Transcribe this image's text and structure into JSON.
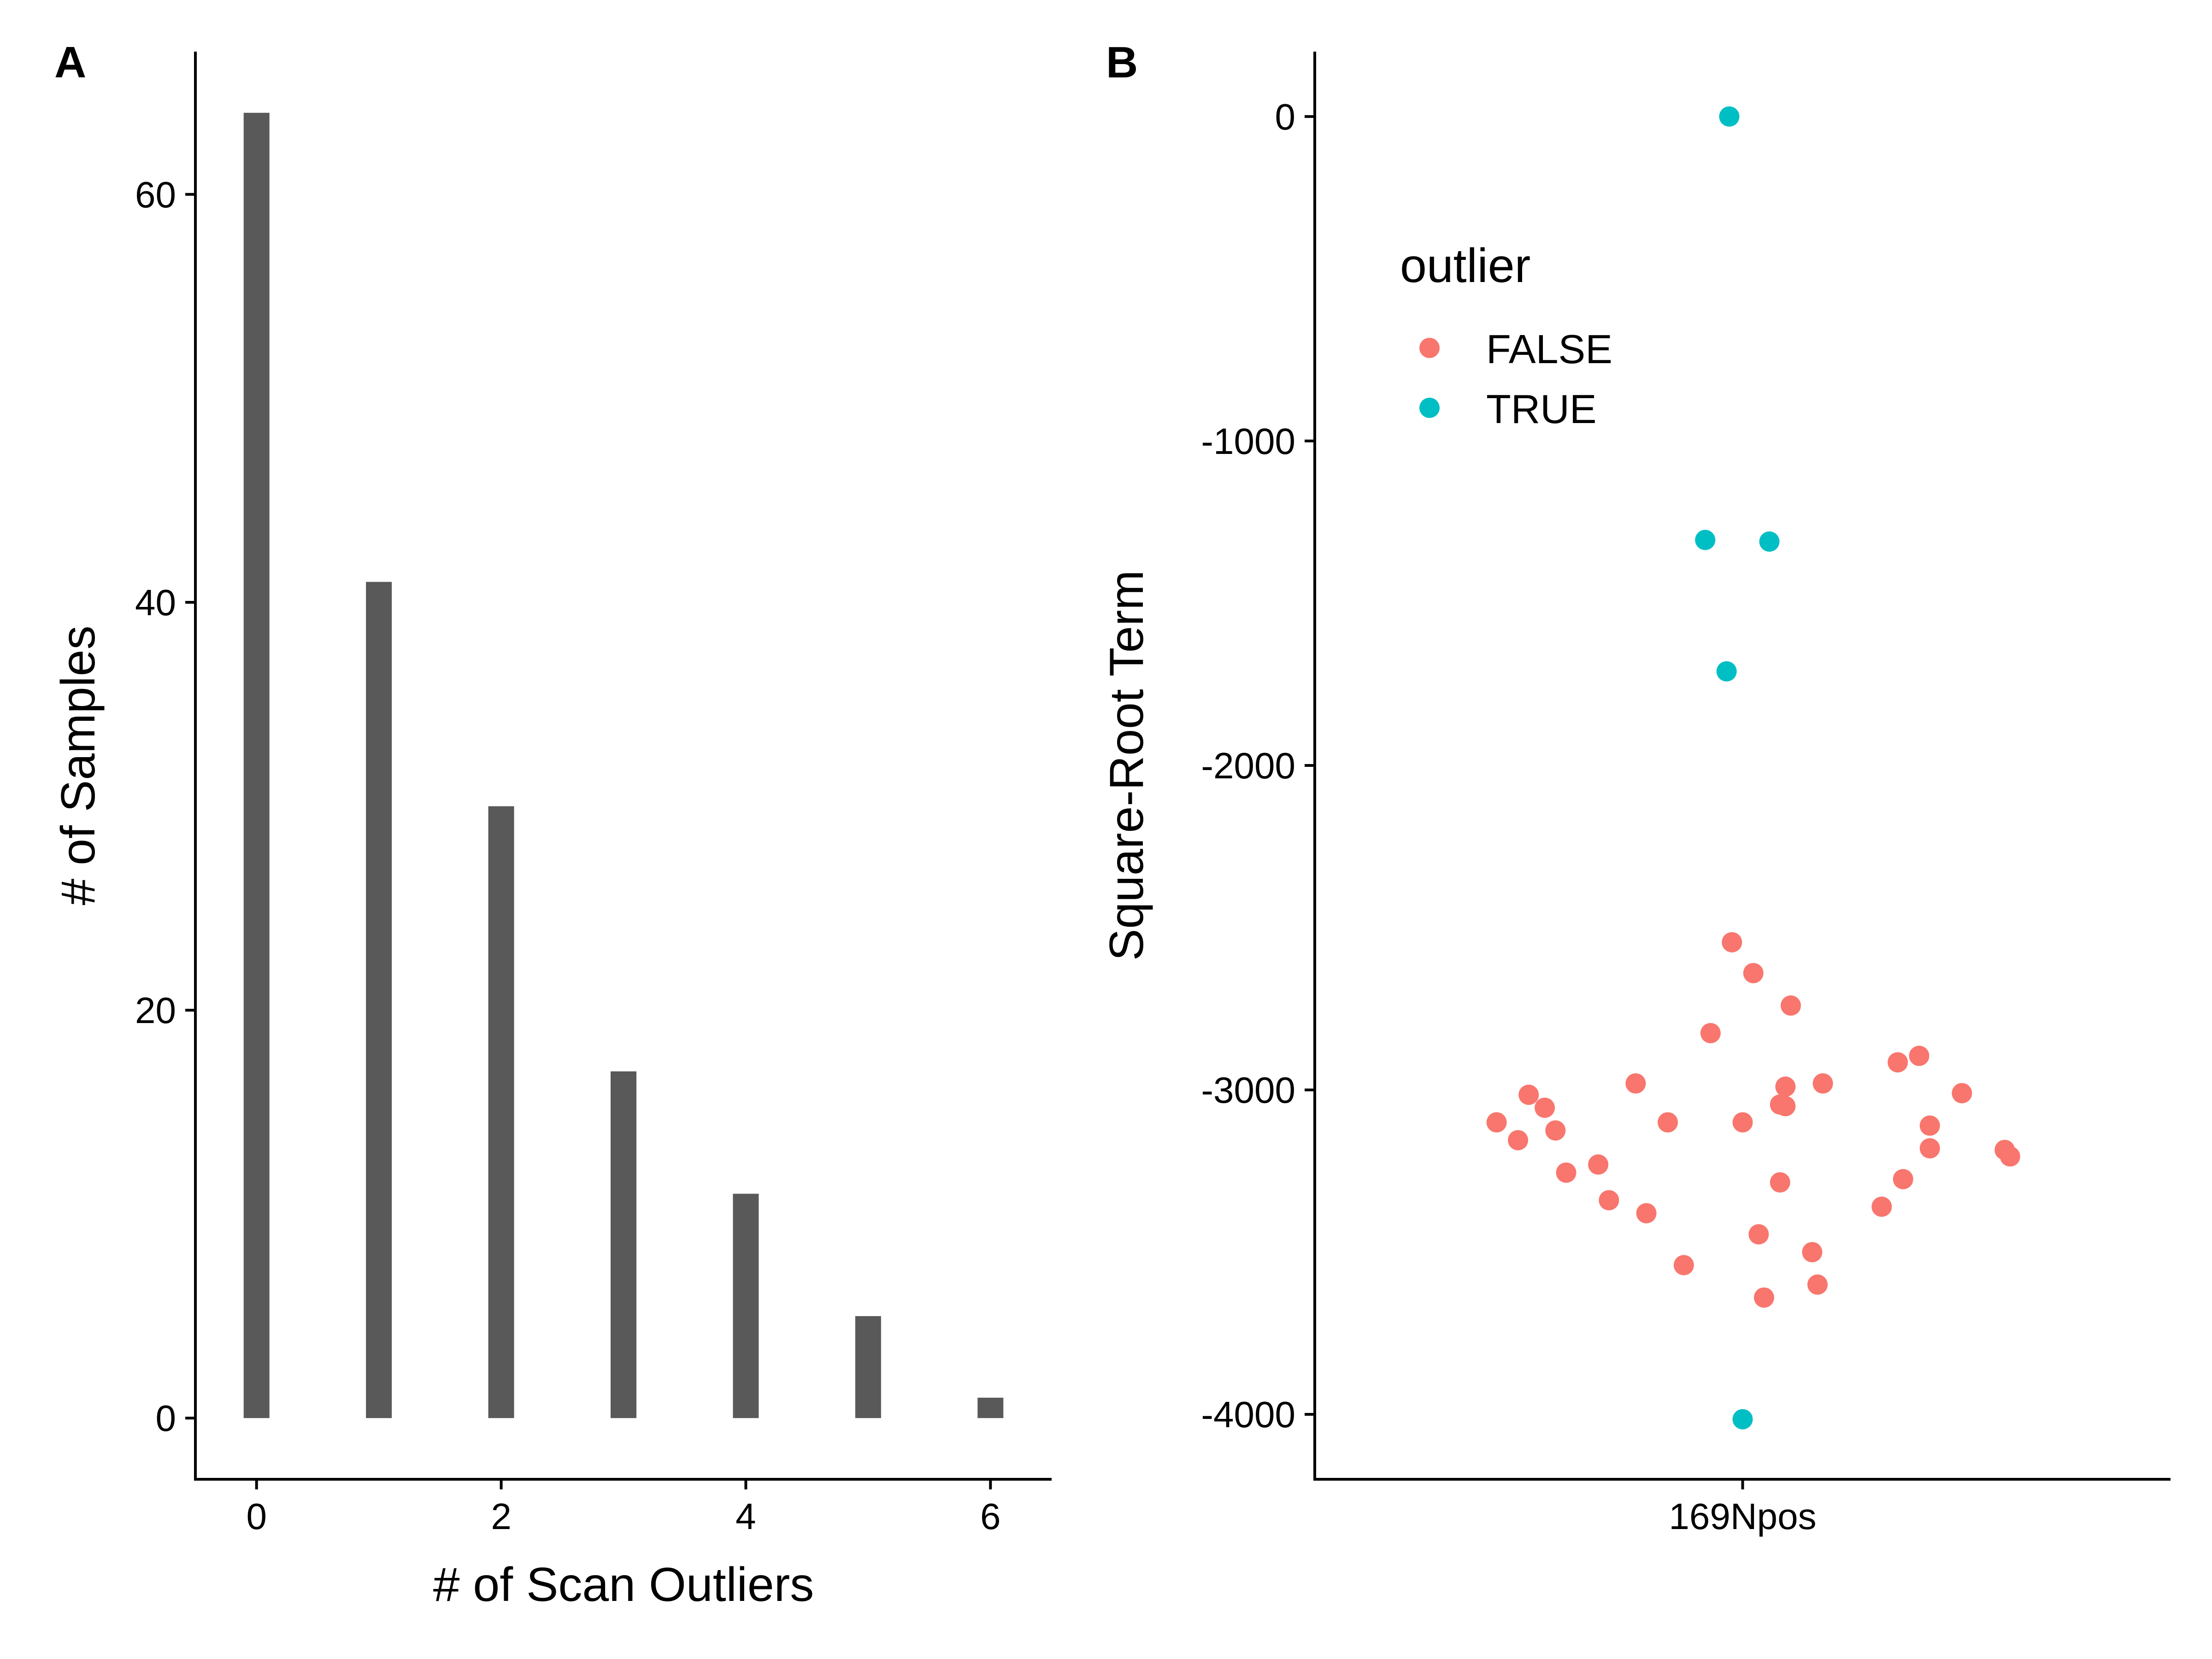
{
  "colors": {
    "bar_fill": "#595959",
    "outlier_false": "#F8766D",
    "outlier_true": "#00BFC4"
  },
  "chart_data": [
    {
      "panel_label": "A",
      "type": "bar",
      "xlabel": "# of Scan Outliers",
      "ylabel": "# of Samples",
      "x": [
        0,
        1,
        2,
        3,
        4,
        5,
        6
      ],
      "values": [
        64,
        41,
        30,
        17,
        11,
        5,
        1
      ],
      "xlim": [
        -0.5,
        6.5
      ],
      "ylim": [
        -3,
        67
      ],
      "xticks": [
        0,
        2,
        4,
        6
      ],
      "yticks": [
        0,
        20,
        40,
        60
      ],
      "grid": false
    },
    {
      "panel_label": "B",
      "type": "scatter",
      "xlabel": "",
      "ylabel": "Square-Root Term",
      "categories": [
        "169Npos"
      ],
      "ylim": [
        -4200,
        200
      ],
      "yticks": [
        0,
        -1000,
        -2000,
        -3000,
        -4000
      ],
      "grid": false,
      "legend": {
        "title": "outlier",
        "position": "top-left",
        "entries": [
          "FALSE",
          "TRUE"
        ]
      },
      "series": [
        {
          "name": "FALSE",
          "points": [
            {
              "x": -0.46,
              "y": -3100
            },
            {
              "x": -0.42,
              "y": -3155
            },
            {
              "x": -0.4,
              "y": -3015
            },
            {
              "x": -0.37,
              "y": -3055
            },
            {
              "x": -0.35,
              "y": -3125
            },
            {
              "x": -0.33,
              "y": -3255
            },
            {
              "x": -0.27,
              "y": -3230
            },
            {
              "x": -0.25,
              "y": -3340
            },
            {
              "x": -0.2,
              "y": -2980
            },
            {
              "x": -0.18,
              "y": -3380
            },
            {
              "x": -0.14,
              "y": -3100
            },
            {
              "x": -0.11,
              "y": -3540
            },
            {
              "x": -0.06,
              "y": -2825
            },
            {
              "x": -0.02,
              "y": -2545
            },
            {
              "x": 0.0,
              "y": -3100
            },
            {
              "x": 0.02,
              "y": -2640
            },
            {
              "x": 0.03,
              "y": -3445
            },
            {
              "x": 0.04,
              "y": -3640
            },
            {
              "x": 0.07,
              "y": -3045
            },
            {
              "x": 0.07,
              "y": -3285
            },
            {
              "x": 0.08,
              "y": -2990
            },
            {
              "x": 0.08,
              "y": -3050
            },
            {
              "x": 0.09,
              "y": -2740
            },
            {
              "x": 0.13,
              "y": -3500
            },
            {
              "x": 0.15,
              "y": -2980
            },
            {
              "x": 0.14,
              "y": -3600
            },
            {
              "x": 0.26,
              "y": -3360
            },
            {
              "x": 0.29,
              "y": -2915
            },
            {
              "x": 0.3,
              "y": -3275
            },
            {
              "x": 0.33,
              "y": -2895
            },
            {
              "x": 0.35,
              "y": -3180
            },
            {
              "x": 0.35,
              "y": -3110
            },
            {
              "x": 0.41,
              "y": -3010
            },
            {
              "x": 0.49,
              "y": -3185
            },
            {
              "x": 0.5,
              "y": -3205
            }
          ]
        },
        {
          "name": "TRUE",
          "points": [
            {
              "x": -0.025,
              "y": 0
            },
            {
              "x": -0.07,
              "y": -1305
            },
            {
              "x": 0.05,
              "y": -1310
            },
            {
              "x": -0.03,
              "y": -1710
            },
            {
              "x": 0.0,
              "y": -4015
            }
          ]
        }
      ]
    }
  ]
}
